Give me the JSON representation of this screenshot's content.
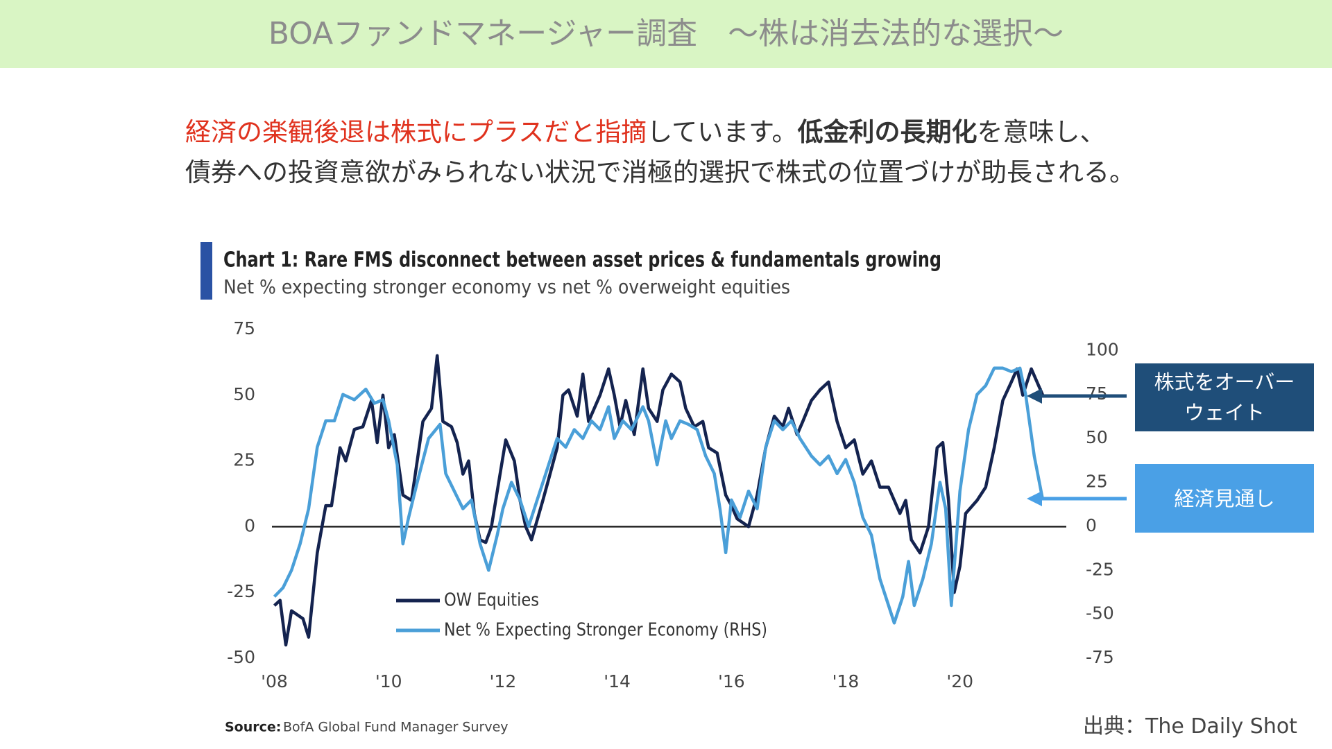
{
  "header": {
    "title": "BOAファンドマネージャー調査　～株は消去法的な選択～"
  },
  "body": {
    "lines": [
      [
        {
          "text": "経済の楽観後退は株式にプラスだと指摘",
          "style": "red"
        },
        {
          "text": "しています。",
          "style": "normal"
        },
        {
          "text": "低金利の長期化",
          "style": "bold"
        },
        {
          "text": "を意味し、",
          "style": "normal"
        }
      ],
      [
        {
          "text": "債券への投資意欲がみられない状況で消極的選択で株式の位置づけが助長される。",
          "style": "normal"
        }
      ]
    ]
  },
  "credit": "出典：The Daily Shot",
  "chart_data": {
    "type": "line",
    "title": "Chart 1:  Rare FMS disconnect between asset prices & fundamentals growing",
    "subtitle": "Net % expecting stronger economy vs net % overweight equities",
    "source_label": "Source:",
    "source": "BofA Global Fund Manager Survey",
    "xlim": [
      2008,
      2021.85
    ],
    "xticks": [
      {
        "value": 2008,
        "label": "'08"
      },
      {
        "value": 2010,
        "label": "'10"
      },
      {
        "value": 2012,
        "label": "'12"
      },
      {
        "value": 2014,
        "label": "'14"
      },
      {
        "value": 2016,
        "label": "'16"
      },
      {
        "value": 2018,
        "label": "'18"
      },
      {
        "value": 2020,
        "label": "'20"
      }
    ],
    "ylim": [
      -50,
      75
    ],
    "yticks": [
      -50,
      -25,
      0,
      25,
      50,
      75
    ],
    "y2lim": [
      -75,
      112
    ],
    "y2ticks": [
      -75,
      -50,
      -25,
      0,
      25,
      50,
      75,
      100
    ],
    "legend": "lower-left",
    "series": [
      {
        "name": "OW Equities",
        "color": "#14234f",
        "axis": "y",
        "x": [
          2008.0,
          2008.1,
          2008.2,
          2008.3,
          2008.5,
          2008.6,
          2008.75,
          2008.9,
          2009.0,
          2009.15,
          2009.25,
          2009.4,
          2009.55,
          2009.7,
          2009.8,
          2009.9,
          2010.0,
          2010.1,
          2010.25,
          2010.4,
          2010.5,
          2010.6,
          2010.75,
          2010.85,
          2010.95,
          2011.1,
          2011.2,
          2011.3,
          2011.4,
          2011.5,
          2011.6,
          2011.7,
          2011.8,
          2011.95,
          2012.05,
          2012.2,
          2012.3,
          2012.4,
          2012.5,
          2012.7,
          2012.8,
          2012.95,
          2013.05,
          2013.15,
          2013.3,
          2013.4,
          2013.5,
          2013.7,
          2013.85,
          2013.95,
          2014.05,
          2014.15,
          2014.3,
          2014.45,
          2014.55,
          2014.7,
          2014.8,
          2014.95,
          2015.1,
          2015.2,
          2015.35,
          2015.5,
          2015.6,
          2015.75,
          2015.9,
          2016.0,
          2016.1,
          2016.3,
          2016.45,
          2016.6,
          2016.75,
          2016.9,
          2017.0,
          2017.15,
          2017.25,
          2017.4,
          2017.55,
          2017.7,
          2017.85,
          2018.0,
          2018.15,
          2018.3,
          2018.45,
          2018.6,
          2018.75,
          2018.95,
          2019.05,
          2019.15,
          2019.3,
          2019.45,
          2019.6,
          2019.7,
          2019.8,
          2019.9,
          2020.0,
          2020.1,
          2020.3,
          2020.45,
          2020.6,
          2020.75,
          2020.9,
          2021.0,
          2021.1,
          2021.25,
          2021.45
        ],
        "values": [
          -30,
          -28,
          -45,
          -32,
          -35,
          -42,
          -10,
          8,
          8,
          30,
          25,
          37,
          38,
          48,
          32,
          50,
          30,
          35,
          12,
          10,
          25,
          40,
          45,
          65,
          40,
          38,
          32,
          20,
          25,
          5,
          -5,
          -6,
          0,
          20,
          33,
          25,
          10,
          0,
          -5,
          10,
          18,
          30,
          50,
          52,
          42,
          58,
          40,
          50,
          60,
          50,
          38,
          48,
          35,
          60,
          45,
          40,
          52,
          58,
          55,
          45,
          38,
          40,
          30,
          28,
          12,
          8,
          3,
          0,
          12,
          30,
          42,
          38,
          45,
          35,
          40,
          48,
          52,
          55,
          40,
          30,
          33,
          20,
          25,
          15,
          15,
          5,
          10,
          -5,
          -10,
          0,
          30,
          32,
          10,
          -25,
          -15,
          5,
          10,
          15,
          30,
          48,
          55,
          60,
          50,
          60,
          50
        ]
      },
      {
        "name": "Net % Expecting Stronger Economy (RHS)",
        "color": "#4a9fd8",
        "axis": "y2",
        "x": [
          2008.0,
          2008.15,
          2008.3,
          2008.45,
          2008.6,
          2008.75,
          2008.9,
          2009.05,
          2009.2,
          2009.4,
          2009.6,
          2009.75,
          2009.9,
          2010.0,
          2010.15,
          2010.25,
          2010.35,
          2010.5,
          2010.7,
          2010.9,
          2011.0,
          2011.15,
          2011.3,
          2011.45,
          2011.6,
          2011.75,
          2011.9,
          2012.0,
          2012.15,
          2012.3,
          2012.45,
          2012.6,
          2012.75,
          2012.95,
          2013.1,
          2013.25,
          2013.4,
          2013.55,
          2013.7,
          2013.85,
          2013.95,
          2014.1,
          2014.25,
          2014.45,
          2014.55,
          2014.7,
          2014.85,
          2014.95,
          2015.1,
          2015.25,
          2015.4,
          2015.55,
          2015.7,
          2015.8,
          2015.9,
          2016.0,
          2016.15,
          2016.3,
          2016.45,
          2016.6,
          2016.75,
          2016.9,
          2017.05,
          2017.2,
          2017.4,
          2017.55,
          2017.7,
          2017.85,
          2018.0,
          2018.15,
          2018.3,
          2018.45,
          2018.6,
          2018.75,
          2018.85,
          2019.0,
          2019.1,
          2019.2,
          2019.35,
          2019.5,
          2019.65,
          2019.75,
          2019.85,
          2020.0,
          2020.15,
          2020.3,
          2020.45,
          2020.6,
          2020.75,
          2020.9,
          2021.05,
          2021.15,
          2021.3,
          2021.45
        ],
        "values": [
          -40,
          -35,
          -25,
          -10,
          10,
          45,
          60,
          60,
          75,
          72,
          78,
          70,
          72,
          60,
          35,
          -10,
          5,
          25,
          50,
          58,
          30,
          20,
          10,
          15,
          -10,
          -25,
          -5,
          10,
          25,
          15,
          0,
          15,
          30,
          50,
          45,
          55,
          50,
          60,
          55,
          68,
          50,
          60,
          55,
          68,
          60,
          35,
          60,
          50,
          60,
          58,
          55,
          40,
          30,
          10,
          -15,
          15,
          5,
          20,
          10,
          45,
          60,
          55,
          60,
          50,
          40,
          35,
          40,
          30,
          38,
          25,
          5,
          -5,
          -30,
          -45,
          -55,
          -40,
          -20,
          -45,
          -30,
          -10,
          25,
          10,
          -45,
          20,
          55,
          75,
          80,
          90,
          90,
          88,
          90,
          75,
          40,
          15
        ]
      }
    ],
    "annotations": [
      {
        "text": "株式をオーバーウェイト",
        "series": 0,
        "color": "#1f4e79"
      },
      {
        "text": "経済見通し",
        "series": 1,
        "color": "#4aa0e6"
      }
    ]
  }
}
